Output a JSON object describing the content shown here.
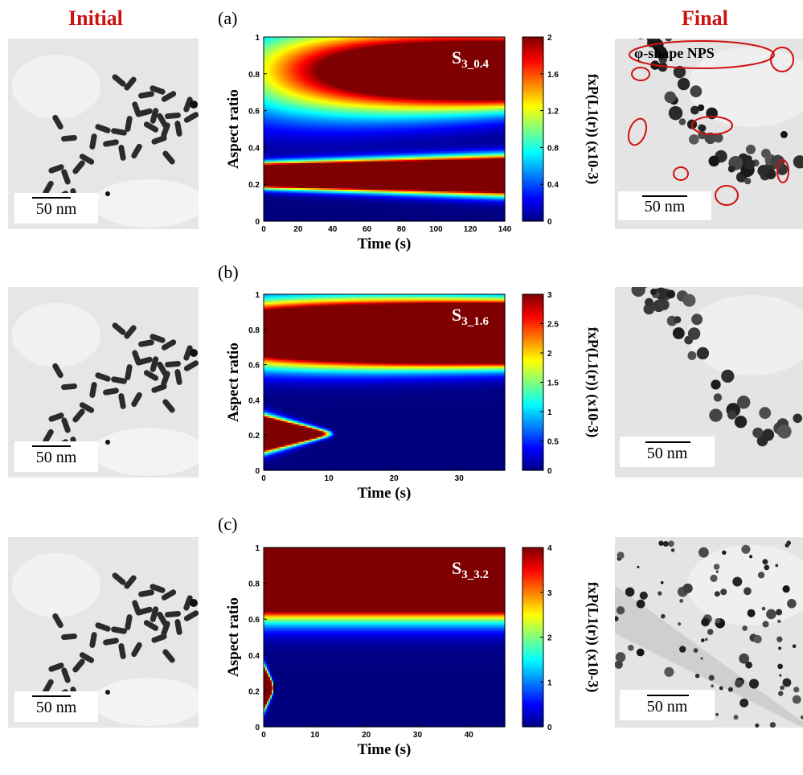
{
  "headers": {
    "initial": "Initial",
    "final": "Final"
  },
  "scale_bar_label": "50 nm",
  "phi_label": "φ-shape NPS",
  "colormap": [
    "#00007f",
    "#0000ff",
    "#007fff",
    "#00ffff",
    "#7fff7f",
    "#ffff00",
    "#ff7f00",
    "#ff0000",
    "#7f0000"
  ],
  "chart_data": [
    {
      "type": "heatmap",
      "panel": "(a)",
      "annotation": "S3_0.4",
      "annotation_main": "S",
      "annotation_sub": "3_0.4",
      "xlabel": "Time (s)",
      "ylabel": "Aspect ratio",
      "colorbar_label": "fxP(L1(r)) (x10-3)",
      "xlim": [
        0,
        140
      ],
      "ylim": [
        0,
        1
      ],
      "clim": [
        0,
        2
      ],
      "xticks": [
        "0",
        "20",
        "40",
        "60",
        "80",
        "100",
        "120",
        "140"
      ],
      "yticks": [
        "0",
        "0.2",
        "0.4",
        "0.6",
        "0.8",
        "1"
      ],
      "cticks": [
        "0",
        "0.4",
        "0.8",
        "1.2",
        "1.6",
        "2"
      ],
      "bands": [
        {
          "ar": 0.25,
          "amp_start": 4.0,
          "amp_end": 4.0,
          "width_start": 0.035,
          "width_end": 0.055,
          "t_end": 140
        },
        {
          "ar": 0.82,
          "amp_start": 0.6,
          "amp_end": 2.4,
          "width_start": 0.18,
          "width_end": 0.12,
          "t_end": 140
        }
      ]
    },
    {
      "type": "heatmap",
      "panel": "(b)",
      "annotation": "S3_1.6",
      "annotation_main": "S",
      "annotation_sub": "3_1.6",
      "xlabel": "Time (s)",
      "ylabel": "Aspect ratio",
      "colorbar_label": "fxP(L1(r)) (x10-3)",
      "xlim": [
        0,
        37
      ],
      "ylim": [
        0,
        1
      ],
      "clim": [
        0,
        3
      ],
      "xticks": [
        "0",
        "10",
        "20",
        "30"
      ],
      "yticks": [
        "0",
        "0.2",
        "0.4",
        "0.6",
        "0.8",
        "1"
      ],
      "cticks": [
        "0",
        "0.5",
        "1",
        "1.5",
        "2",
        "2.5",
        "3"
      ],
      "bands": [
        {
          "ar": 0.21,
          "amp_start": 6.0,
          "amp_end": 0.0,
          "width_start": 0.05,
          "width_end": 0.01,
          "t_end": 11
        },
        {
          "ar": 0.78,
          "amp_start": 2.0,
          "amp_end": 6.0,
          "width_start": 0.11,
          "width_end": 0.09,
          "t_end": 37
        }
      ]
    },
    {
      "type": "heatmap",
      "panel": "(c)",
      "annotation": "S3_3.2",
      "annotation_main": "S",
      "annotation_sub": "3_3.2",
      "xlabel": "Time (s)",
      "ylabel": "Aspect ratio",
      "colorbar_label": "fxP(L1(r)) (x10-3)",
      "xlim": [
        0,
        47
      ],
      "ylim": [
        0,
        1
      ],
      "clim": [
        0,
        4
      ],
      "xticks": [
        "0",
        "10",
        "20",
        "30",
        "40"
      ],
      "yticks": [
        "0",
        "0.2",
        "0.4",
        "0.6",
        "0.8",
        "1"
      ],
      "cticks": [
        "0",
        "1",
        "2",
        "3",
        "4"
      ],
      "bands": [
        {
          "ar": 0.22,
          "amp_start": 6.0,
          "amp_end": 0.0,
          "width_start": 0.06,
          "width_end": 0.02,
          "t_end": 2
        },
        {
          "ar": 0.83,
          "amp_start": 3.3,
          "amp_end": 3.3,
          "width_start": 0.12,
          "width_end": 0.12,
          "t_end": 47
        }
      ]
    }
  ]
}
